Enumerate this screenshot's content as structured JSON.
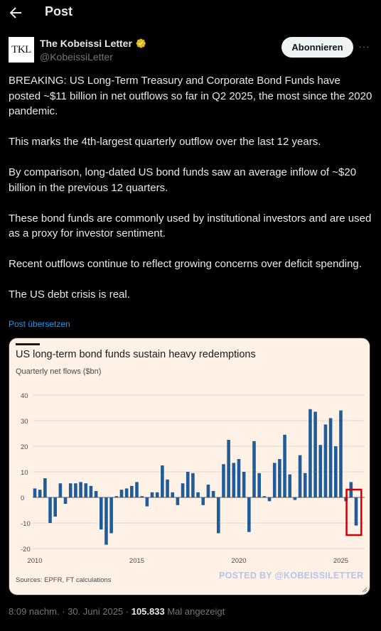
{
  "header": {
    "title": "Post",
    "back_icon": "arrow-left-icon"
  },
  "author": {
    "avatar_text": "TKL",
    "name": "The Kobeissi Letter",
    "verified_color": "#e2b719",
    "handle": "@KobeissiLetter",
    "follow_label": "Abonnieren",
    "more_icon": "···"
  },
  "tweet": {
    "paragraphs": [
      "BREAKING: US Long-Term Treasury and Corporate Bond Funds have posted ~$11 billion in net outflows so far in Q2 2025, the most since the 2020 pandemic.",
      "This marks the 4th-largest quarterly outflow over the last 12 years.",
      "By comparison, long-dated US bond funds saw an average inflow of ~$20 billion in the previous 12 quarters.",
      "These bond funds are commonly used by institutional investors and are used as a proxy for investor sentiment.",
      "Recent outflows continue to reflect growing concerns over deficit spending.",
      "The US debt crisis is real."
    ],
    "translate_label": "Post übersetzen"
  },
  "card": {
    "title": "US long-term bond funds sustain heavy redemptions",
    "sources": "Sources: EPFR, FT calculations",
    "watermark": "POSTED BY @KOBEISSILETTER",
    "background": "#fff1e5"
  },
  "chart_data": {
    "type": "bar",
    "title": "US long-term bond funds sustain heavy redemptions",
    "ylabel": "Quarterly net flows ($bn)",
    "ylim": [
      -20,
      40
    ],
    "yticks": [
      40,
      30,
      20,
      10,
      0,
      -10,
      -20
    ],
    "xticks": [
      "2010",
      "2015",
      "2020",
      "2025"
    ],
    "x_start_year": 2010,
    "bar_color": "#1f5c99",
    "highlight_color": "#cc0000",
    "grid": true,
    "series": [
      {
        "values": [
          3.5,
          3,
          7.5,
          -10,
          -7.5,
          5.5,
          -2.5,
          5.5,
          5.5,
          6,
          5.5,
          4.5,
          2.5,
          -12.5,
          -18.5,
          -14,
          0.5,
          3,
          3.5,
          4.5,
          6,
          0.5,
          -3.5,
          2,
          2,
          12.5,
          7,
          2,
          -3,
          5.5,
          10,
          9.5,
          2,
          -3,
          5,
          2.5,
          -14,
          13,
          22.5,
          13.5,
          15,
          10,
          -13.5,
          22,
          9.5,
          0.5,
          -1.5,
          13.5,
          15,
          24.5,
          9,
          -1,
          16.5,
          9.5,
          34.5,
          33.5,
          20.5,
          28.5,
          31,
          20,
          34,
          -1.5,
          6,
          -11
        ]
      }
    ],
    "highlight_last": 2
  },
  "meta": {
    "time": "8:09 nachm. · 30. Juni 2025 · ",
    "views": "105.833",
    "views_suffix": " Mal angezeigt"
  }
}
